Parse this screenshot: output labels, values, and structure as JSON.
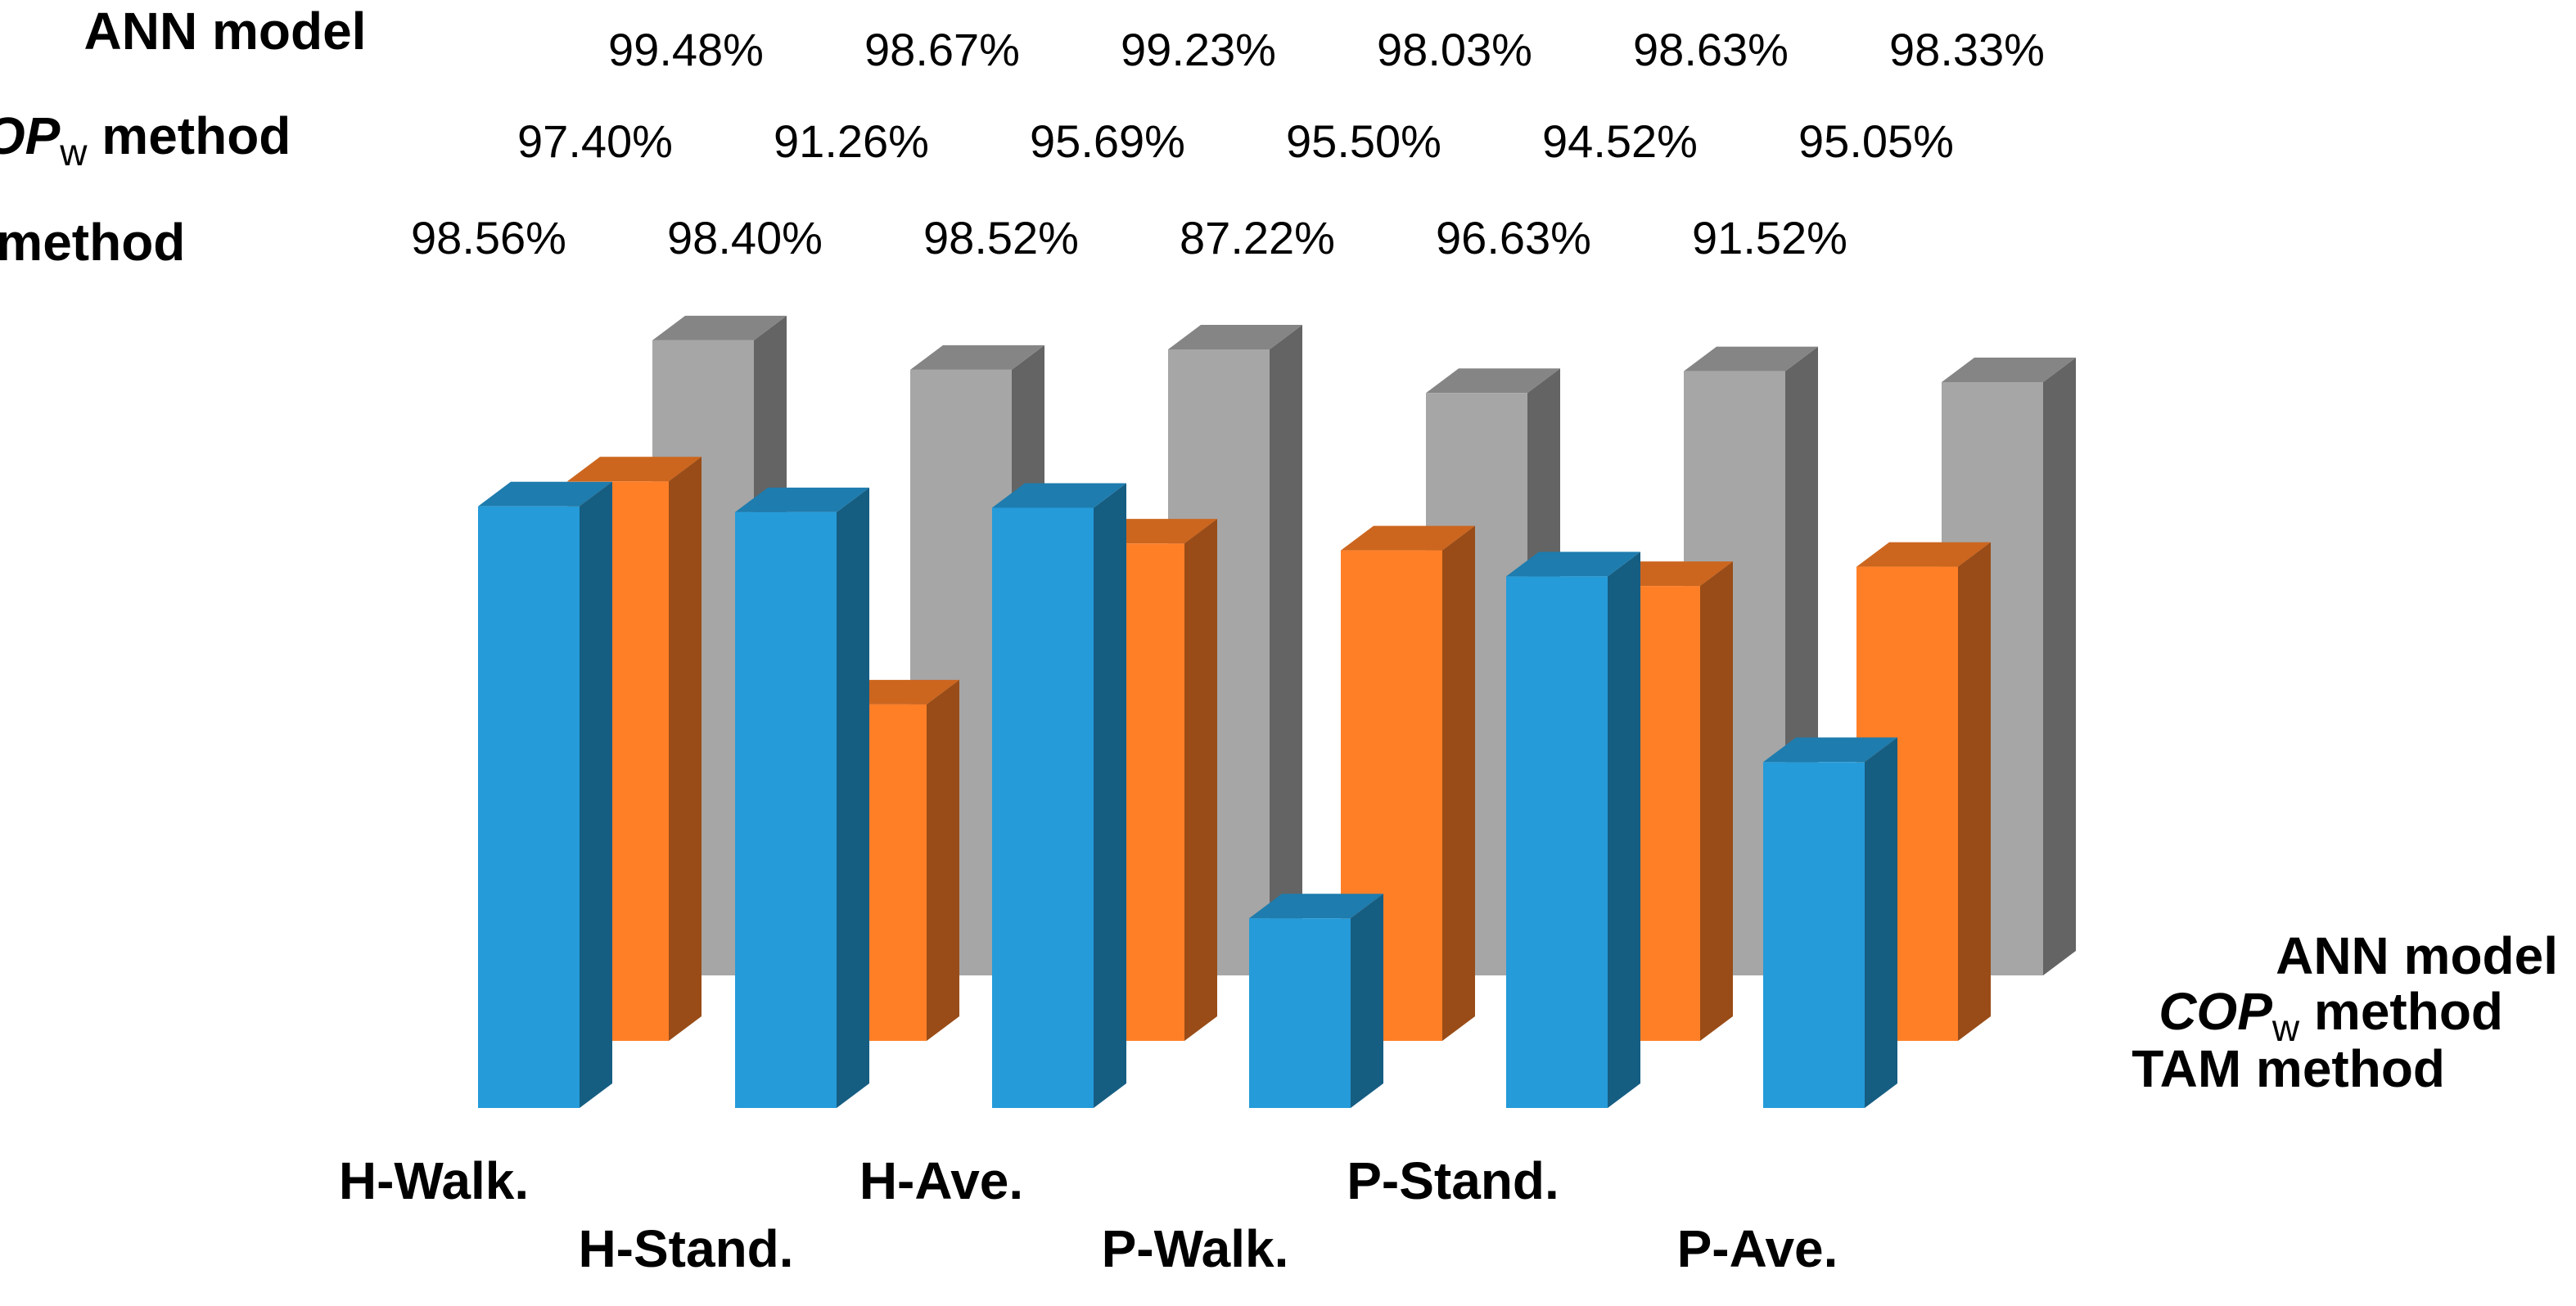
{
  "chart_data": {
    "type": "bar",
    "subtype": "3d-column",
    "categories": [
      "H-Walk.",
      "H-Stand.",
      "H-Ave.",
      "P-Walk.",
      "P-Stand.",
      "P-Ave."
    ],
    "series": [
      {
        "name": "ANN model",
        "name_parts": {
          "main": "ANN model",
          "subscript": "",
          "rest": ""
        },
        "color": "#A6A6A6",
        "values": [
          99.48,
          98.67,
          99.23,
          98.03,
          98.63,
          98.33
        ],
        "labels": [
          "99.48%",
          "98.67%",
          "99.23%",
          "98.03%",
          "98.63%",
          "98.33%"
        ]
      },
      {
        "name": "COPw method",
        "name_parts": {
          "main": "COP",
          "subscript": "w",
          "rest": " method"
        },
        "color": "#FF7F27",
        "values": [
          97.4,
          91.26,
          95.69,
          95.5,
          94.52,
          95.05
        ],
        "labels": [
          "97.40%",
          "91.26%",
          "95.69%",
          "95.50%",
          "94.52%",
          "95.05%"
        ]
      },
      {
        "name": "TAM method",
        "name_parts": {
          "main": "TAM method",
          "subscript": "",
          "rest": ""
        },
        "color": "#259BD9",
        "values": [
          98.56,
          98.4,
          98.52,
          87.22,
          96.63,
          91.52
        ],
        "labels": [
          "98.56%",
          "98.40%",
          "98.52%",
          "87.22%",
          "96.63%",
          "91.52%"
        ]
      }
    ],
    "ylim": [
      82,
      100
    ],
    "grid": false,
    "title": "",
    "xlabel": "",
    "ylabel": ""
  }
}
